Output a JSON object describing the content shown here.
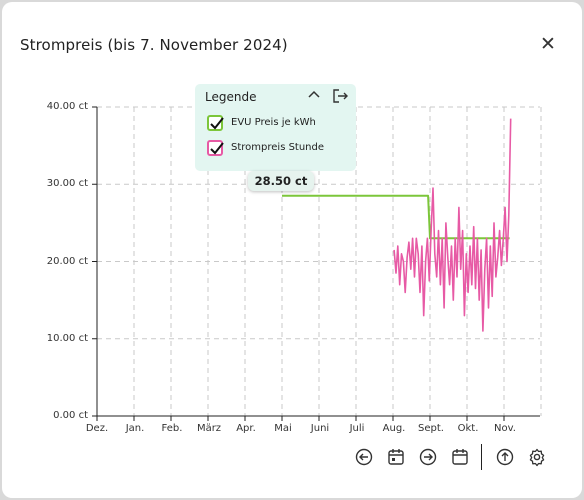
{
  "dialog": {
    "title": "Strompreis (bis 7. November 2024)",
    "close_icon": "close-icon"
  },
  "chart_data": {
    "type": "line",
    "y_unit": "ct",
    "ylim": [
      0,
      40
    ],
    "y_ticks": [
      "0.00 ct",
      "10.00 ct",
      "20.00 ct",
      "30.00 ct",
      "40.00 ct"
    ],
    "x_ticks": [
      "Dez.",
      "Jan.",
      "Feb.",
      "März",
      "Apr.",
      "Mai",
      "Juni",
      "Juli",
      "Aug.",
      "Sept.",
      "Okt.",
      "Nov."
    ],
    "grid": true,
    "legend_placement": "top-center",
    "series": [
      {
        "name": "EVU Preis je kWh",
        "color": "#7cc63a",
        "points": [
          [
            5.0,
            28.5
          ],
          [
            8.95,
            28.5
          ],
          [
            9.0,
            23.0
          ],
          [
            11.15,
            23.0
          ]
        ]
      },
      {
        "name": "Strompreis Stunde",
        "color": "#e75aa5",
        "points": [
          [
            8.03,
            21.5
          ],
          [
            8.08,
            18.5
          ],
          [
            8.13,
            22.0
          ],
          [
            8.18,
            17.0
          ],
          [
            8.23,
            21.0
          ],
          [
            8.28,
            20.0
          ],
          [
            8.33,
            16.0
          ],
          [
            8.38,
            20.5
          ],
          [
            8.43,
            22.5
          ],
          [
            8.48,
            19.0
          ],
          [
            8.53,
            23.0
          ],
          [
            8.58,
            18.0
          ],
          [
            8.63,
            23.0
          ],
          [
            8.68,
            21.0
          ],
          [
            8.73,
            16.0
          ],
          [
            8.78,
            22.0
          ],
          [
            8.83,
            13.0
          ],
          [
            8.88,
            20.0
          ],
          [
            8.93,
            23.0
          ],
          [
            8.98,
            17.5
          ],
          [
            9.03,
            24.0
          ],
          [
            9.08,
            29.5
          ],
          [
            9.13,
            21.0
          ],
          [
            9.18,
            18.0
          ],
          [
            9.23,
            24.0
          ],
          [
            9.28,
            17.0
          ],
          [
            9.33,
            23.0
          ],
          [
            9.38,
            14.0
          ],
          [
            9.43,
            25.0
          ],
          [
            9.48,
            20.5
          ],
          [
            9.53,
            17.0
          ],
          [
            9.58,
            22.0
          ],
          [
            9.63,
            15.0
          ],
          [
            9.68,
            23.0
          ],
          [
            9.73,
            18.0
          ],
          [
            9.78,
            27.0
          ],
          [
            9.83,
            19.0
          ],
          [
            9.88,
            24.0
          ],
          [
            9.93,
            13.0
          ],
          [
            9.98,
            21.0
          ],
          [
            10.03,
            16.0
          ],
          [
            10.08,
            22.0
          ],
          [
            10.13,
            17.0
          ],
          [
            10.18,
            24.5
          ],
          [
            10.23,
            16.5
          ],
          [
            10.28,
            23.0
          ],
          [
            10.33,
            15.0
          ],
          [
            10.38,
            21.5
          ],
          [
            10.43,
            11.0
          ],
          [
            10.48,
            19.0
          ],
          [
            10.53,
            23.0
          ],
          [
            10.58,
            14.0
          ],
          [
            10.63,
            22.0
          ],
          [
            10.68,
            15.5
          ],
          [
            10.73,
            25.0
          ],
          [
            10.78,
            18.0
          ],
          [
            10.83,
            20.5
          ],
          [
            10.88,
            24.0
          ],
          [
            10.93,
            19.5
          ],
          [
            10.98,
            23.0
          ],
          [
            11.03,
            27.0
          ],
          [
            11.08,
            20.0
          ],
          [
            11.13,
            26.0
          ],
          [
            11.18,
            38.5
          ]
        ]
      }
    ]
  },
  "legend": {
    "title": "Legende",
    "collapse_icon": "chevron-up-icon",
    "exit_icon": "exit-icon",
    "items": [
      {
        "label": "EVU Preis je kWh",
        "color": "#7cc63a",
        "checked": true
      },
      {
        "label": "Strompreis Stunde",
        "color": "#e75aa5",
        "checked": true
      }
    ]
  },
  "tooltip": {
    "value": "28.50 ct"
  },
  "toolbar": {
    "icons": [
      "back-circle-icon",
      "calendar-day-icon",
      "forward-circle-icon",
      "calendar-icon",
      "upload-circle-icon",
      "gear-icon"
    ]
  }
}
